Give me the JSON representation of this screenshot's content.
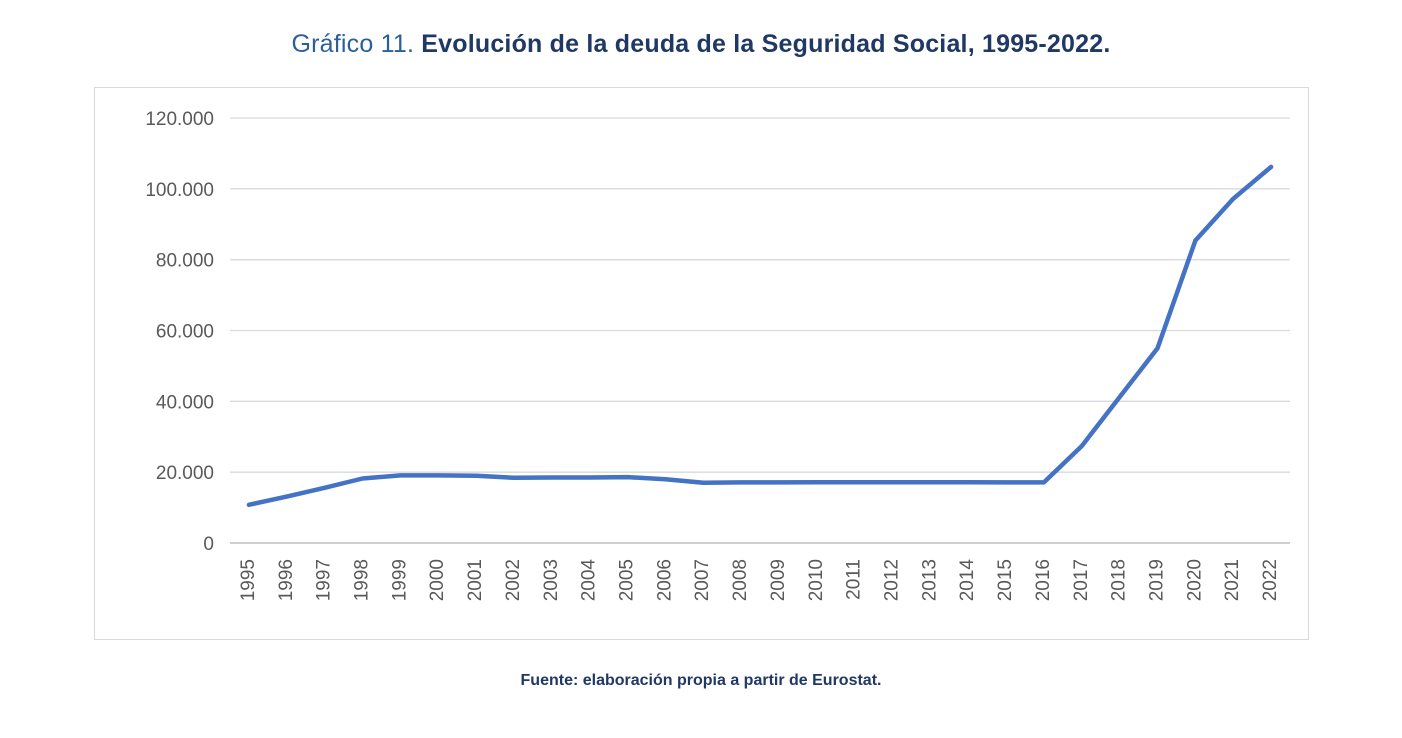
{
  "title": {
    "prefix": "Gráfico 11. ",
    "main": "Evolución de la deuda de la Seguridad Social, 1995-2022."
  },
  "source": "Fuente: elaboración propia a partir de Eurostat.",
  "colors": {
    "line": "#4472C4",
    "gridline": "#d9d9d9",
    "axis_line": "#bfbfbf",
    "tick_label": "#595959",
    "title_prefix": "#2a6099",
    "title_main": "#1f3864",
    "source_text": "#1f3864"
  },
  "chart_data": {
    "type": "line",
    "title": "Evolución de la deuda de la Seguridad Social, 1995-2022.",
    "xlabel": "",
    "ylabel": "",
    "ylim": [
      0,
      120000
    ],
    "grid": "horizontal",
    "legend": "none",
    "categories": [
      "1995",
      "1996",
      "1997",
      "1998",
      "1999",
      "2000",
      "2001",
      "2002",
      "2003",
      "2004",
      "2005",
      "2006",
      "2007",
      "2008",
      "2009",
      "2010",
      "2011",
      "2012",
      "2013",
      "2014",
      "2015",
      "2016",
      "2017",
      "2018",
      "2019",
      "2020",
      "2021",
      "2022"
    ],
    "values": [
      10800,
      13100,
      15600,
      18200,
      19100,
      19100,
      19000,
      18400,
      18500,
      18500,
      18600,
      18000,
      17000,
      17100,
      17100,
      17150,
      17150,
      17150,
      17150,
      17150,
      17100,
      17100,
      27400,
      41200,
      55000,
      85400,
      97200,
      106200
    ],
    "yticks": [
      {
        "value": 0,
        "label": "0"
      },
      {
        "value": 20000,
        "label": "20.000"
      },
      {
        "value": 40000,
        "label": "40.000"
      },
      {
        "value": 60000,
        "label": "60.000"
      },
      {
        "value": 80000,
        "label": "80.000"
      },
      {
        "value": 100000,
        "label": "100.000"
      },
      {
        "value": 120000,
        "label": "120.000"
      }
    ]
  }
}
